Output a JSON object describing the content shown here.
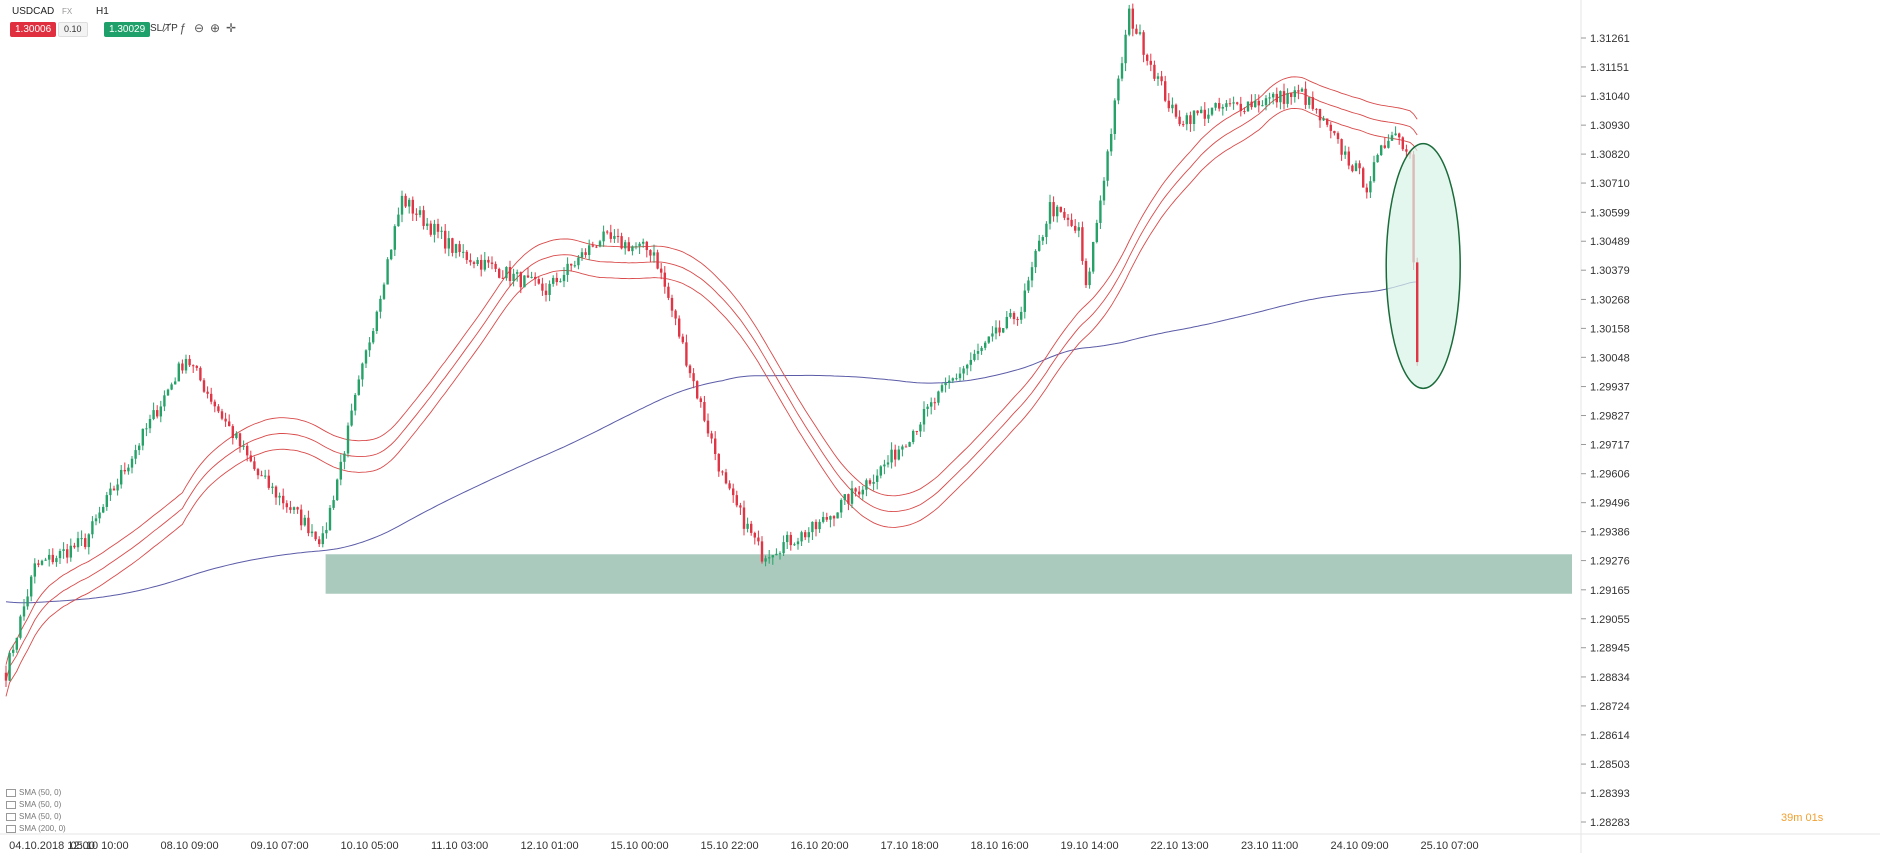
{
  "toolbar": {
    "symbol": "USDCAD",
    "symbol_type": "FX",
    "timeframe": "H1",
    "sell_price": "1.30006",
    "quantity": "0.10",
    "buy_price": "1.30029",
    "sl_tp_label": "SL/TP",
    "icons": [
      "line-chart-icon",
      "indicator-icon",
      "zoom-out-icon",
      "zoom-in-icon",
      "crosshair-icon"
    ]
  },
  "indicators": [
    "SMA (50, 0)",
    "SMA (50, 0)",
    "SMA (50, 0)",
    "SMA (200, 0)"
  ],
  "timer": "39m 01s",
  "colors": {
    "up": "#26a269",
    "down": "#e03545",
    "sma_envelope": "#d94a4a",
    "sma200": "#5b5ba8",
    "support_zone": "#8fb8a8",
    "highlight_ellipse": "#d8f3e8",
    "highlight_border": "#1a6b3a"
  },
  "chart_data": {
    "type": "candlestick",
    "price_ticks": [
      "1.31261",
      "1.31151",
      "1.31040",
      "1.30930",
      "1.30820",
      "1.30710",
      "1.30599",
      "1.30489",
      "1.30379",
      "1.30268",
      "1.30158",
      "1.30048",
      "1.29937",
      "1.29827",
      "1.29717",
      "1.29606",
      "1.29496",
      "1.29386",
      "1.29276",
      "1.29165",
      "1.29055",
      "1.28945",
      "1.28834",
      "1.28724",
      "1.28614",
      "1.28503",
      "1.28393",
      "1.28283"
    ],
    "time_ticks": [
      "04.10.2018 12:00",
      "05.10 10:00",
      "08.10 09:00",
      "09.10 07:00",
      "10.10 05:00",
      "11.10 03:00",
      "12.10 01:00",
      "15.10 00:00",
      "15.10 22:00",
      "16.10 20:00",
      "17.10 18:00",
      "18.10 16:00",
      "19.10 14:00",
      "22.10 13:00",
      "23.10 11:00",
      "24.10 09:00",
      "25.10 07:00"
    ],
    "ylim": [
      1.28283,
      1.31261
    ],
    "key_points": [
      {
        "bar": 0,
        "price": 1.2885
      },
      {
        "bar": 8,
        "price": 1.2925
      },
      {
        "bar": 22,
        "price": 1.2935
      },
      {
        "bar": 50,
        "price": 1.3005
      },
      {
        "bar": 70,
        "price": 1.296
      },
      {
        "bar": 88,
        "price": 1.2935
      },
      {
        "bar": 110,
        "price": 1.3065
      },
      {
        "bar": 125,
        "price": 1.3045
      },
      {
        "bar": 150,
        "price": 1.303
      },
      {
        "bar": 165,
        "price": 1.305
      },
      {
        "bar": 180,
        "price": 1.3045
      },
      {
        "bar": 200,
        "price": 1.2955
      },
      {
        "bar": 210,
        "price": 1.293
      },
      {
        "bar": 225,
        "price": 1.294
      },
      {
        "bar": 245,
        "price": 1.2965
      },
      {
        "bar": 262,
        "price": 1.2995
      },
      {
        "bar": 282,
        "price": 1.3023
      },
      {
        "bar": 290,
        "price": 1.3062
      },
      {
        "bar": 298,
        "price": 1.3052
      },
      {
        "bar": 300,
        "price": 1.303
      },
      {
        "bar": 312,
        "price": 1.3135
      },
      {
        "bar": 325,
        "price": 1.3095
      },
      {
        "bar": 340,
        "price": 1.31
      },
      {
        "bar": 360,
        "price": 1.3105
      },
      {
        "bar": 378,
        "price": 1.307
      },
      {
        "bar": 385,
        "price": 1.3092
      },
      {
        "bar": 390,
        "price": 1.3082
      },
      {
        "bar": 392,
        "price": 1.3003
      }
    ],
    "support_zone": {
      "from_bar": 86,
      "price_low": 1.2915,
      "price_high": 1.293
    },
    "highlight": {
      "bar": 392,
      "price_low": 1.2993,
      "price_high": 1.3086
    },
    "series": [
      {
        "name": "SMA (50, 0)",
        "type": "line"
      },
      {
        "name": "SMA (200, 0)",
        "type": "line"
      }
    ]
  }
}
